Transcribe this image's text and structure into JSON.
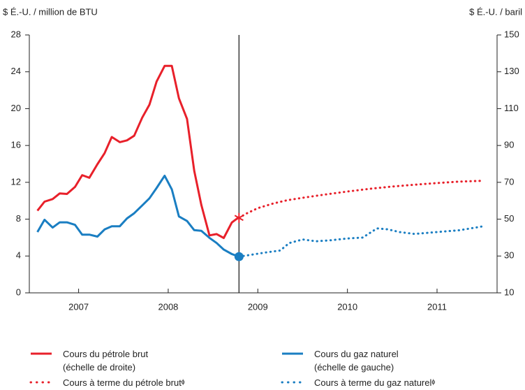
{
  "chart_data": {
    "type": "line",
    "y_label": "$ É.-U. / million de BTU",
    "y2_label": "$ É.-U. / baril",
    "xlim": [
      2006.95,
      2012.17
    ],
    "xticks": [
      {
        "value": 2007.5,
        "label": "2007"
      },
      {
        "value": 2008.5,
        "label": "2008"
      },
      {
        "value": 2009.5,
        "label": "2009"
      },
      {
        "value": 2010.5,
        "label": "2010"
      },
      {
        "value": 2011.5,
        "label": "2011"
      }
    ],
    "ylim": [
      0,
      28
    ],
    "yticks": [
      0,
      4,
      8,
      12,
      16,
      20,
      24,
      28
    ],
    "y2lim": [
      10,
      150
    ],
    "y2ticks": [
      10,
      30,
      50,
      70,
      90,
      110,
      130,
      150
    ],
    "grid": false,
    "vline_x": 2009.29,
    "series": [
      {
        "name": "Cours du pétrole brut\n(échelle de droite)",
        "color": "#e8202a",
        "style": "solid",
        "axis": "y2",
        "x": [
          2007.04,
          2007.12,
          2007.21,
          2007.29,
          2007.37,
          2007.46,
          2007.54,
          2007.62,
          2007.71,
          2007.79,
          2007.87,
          2007.96,
          2008.04,
          2008.12,
          2008.21,
          2008.29,
          2008.37,
          2008.46,
          2008.54,
          2008.62,
          2008.71,
          2008.79,
          2008.87,
          2008.96,
          2009.04,
          2009.12,
          2009.21,
          2009.29
        ],
        "values": [
          54.6,
          59.5,
          60.9,
          64.0,
          63.7,
          67.5,
          73.9,
          72.5,
          79.8,
          85.8,
          94.6,
          91.8,
          92.8,
          95.3,
          105.1,
          112.1,
          124.7,
          133.2,
          133.2,
          115.6,
          104.4,
          76.3,
          57.7,
          41.2,
          41.9,
          39.8,
          48.2,
          51.1
        ]
      },
      {
        "name": "Cours du gaz naturel\n(échelle de gauche)",
        "color": "#1a7ec2",
        "style": "solid",
        "x": [
          2007.04,
          2007.12,
          2007.21,
          2007.29,
          2007.37,
          2007.46,
          2007.54,
          2007.62,
          2007.71,
          2007.79,
          2007.87,
          2007.96,
          2008.04,
          2008.12,
          2008.21,
          2008.29,
          2008.37,
          2008.46,
          2008.54,
          2008.62,
          2008.71,
          2008.79,
          2008.87,
          2008.96,
          2009.04,
          2009.12,
          2009.21,
          2009.29
        ],
        "values": [
          6.6,
          7.94,
          7.09,
          7.66,
          7.66,
          7.38,
          6.32,
          6.32,
          6.11,
          6.88,
          7.23,
          7.23,
          8.08,
          8.64,
          9.49,
          10.26,
          11.38,
          12.72,
          11.24,
          8.29,
          7.8,
          6.81,
          6.74,
          5.97,
          5.41,
          4.7,
          4.21,
          3.93
        ]
      },
      {
        "name": "Cours à terme du pétrole brutᶲ",
        "color": "#e8202a",
        "style": "dotted",
        "axis": "y2",
        "marker": "star",
        "x": [
          2009.29,
          2009.37,
          2009.5,
          2009.67,
          2009.83,
          2010.0,
          2010.25,
          2010.5,
          2010.75,
          2011.0,
          2011.25,
          2011.5,
          2011.75,
          2012.0
        ],
        "values": [
          50.7,
          53,
          56,
          58.5,
          60.3,
          61.6,
          63.4,
          65,
          66.5,
          67.7,
          68.7,
          69.6,
          70.4,
          70.8
        ]
      },
      {
        "name": "Cours à terme du gaz naturelᶲ",
        "color": "#1a7ec2",
        "style": "dotted",
        "marker": "circle",
        "x": [
          2009.29,
          2009.4,
          2009.6,
          2009.75,
          2009.85,
          2010.0,
          2010.15,
          2010.3,
          2010.5,
          2010.67,
          2010.83,
          2010.95,
          2011.08,
          2011.25,
          2011.5,
          2011.75,
          2012.0
        ],
        "values": [
          3.93,
          4.1,
          4.4,
          4.6,
          5.4,
          5.8,
          5.6,
          5.7,
          5.9,
          6.0,
          7.0,
          6.9,
          6.6,
          6.4,
          6.6,
          6.8,
          7.2
        ]
      }
    ]
  }
}
